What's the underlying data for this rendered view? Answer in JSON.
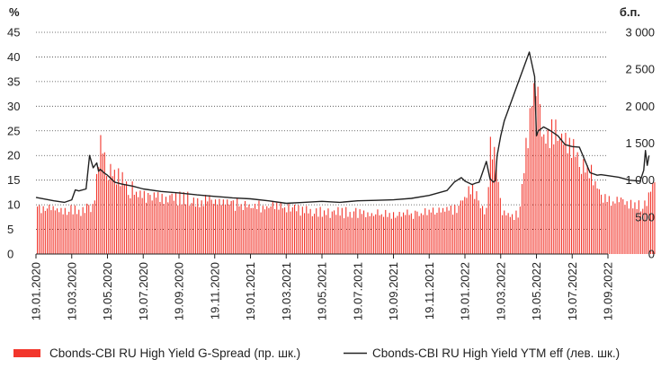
{
  "chart_data": {
    "type": "bar+line",
    "left_axis": {
      "unit": "%",
      "ticks": [
        "45",
        "40",
        "35",
        "30",
        "25",
        "20",
        "15",
        "10",
        "5",
        "0"
      ],
      "range": [
        0,
        45
      ]
    },
    "right_axis": {
      "unit": "б.п.",
      "ticks": [
        "3 000",
        "2 500",
        "2 000",
        "1 500",
        "1 000",
        "500",
        "0"
      ],
      "range": [
        0,
        3000
      ]
    },
    "x_ticks": [
      "19.01.2020",
      "19.03.2020",
      "19.05.2020",
      "19.07.2020",
      "19.09.2020",
      "19.11.2020",
      "19.01.2021",
      "19.03.2021",
      "19.05.2021",
      "19.07.2021",
      "19.09.2021",
      "19.11.2021",
      "19.01.2022",
      "19.03.2022",
      "19.05.2022",
      "19.07.2022",
      "19.09.2022"
    ],
    "grid": "horizontal-dotted",
    "series": [
      {
        "name": "Cbonds-CBI RU High Yield G-Spread (пр. шк.)",
        "type": "bar",
        "axis": "right",
        "color": "#f2362c",
        "x": [
          0.0,
          0.5,
          1.0,
          1.4,
          1.6,
          1.8,
          2.0,
          2.3,
          2.6,
          3.0,
          3.5,
          4.0,
          5.0,
          6.0,
          7.0,
          8.0,
          9.0,
          10.0,
          11.0,
          11.7,
          12.2,
          12.4,
          12.5,
          12.6,
          12.7,
          12.9,
          13.0,
          13.2,
          13.5,
          13.9,
          14.0,
          14.2,
          14.5,
          14.8,
          15.0,
          15.2,
          15.5,
          15.8,
          16.0,
          16.3,
          16.5,
          16.9,
          17.0,
          17.3
        ],
        "values": [
          650,
          620,
          590,
          600,
          660,
          1460,
          1080,
          1040,
          880,
          800,
          780,
          760,
          700,
          660,
          620,
          560,
          560,
          520,
          560,
          600,
          900,
          680,
          600,
          560,
          1500,
          1140,
          560,
          520,
          520,
          2320,
          2090,
          1560,
          1700,
          1480,
          1460,
          1200,
          1160,
          740,
          700,
          720,
          680,
          640,
          660,
          1000
        ]
      },
      {
        "name": "Cbonds-CBI RU High Yield YTM eff (лев. шк.)",
        "type": "line",
        "axis": "left",
        "color": "#222222",
        "x": [
          0.0,
          0.5,
          0.8,
          1.0,
          1.1,
          1.2,
          1.4,
          1.5,
          1.6,
          1.7,
          1.75,
          1.8,
          1.9,
          2.0,
          2.2,
          2.4,
          2.7,
          3.0,
          3.5,
          4.0,
          4.5,
          5.0,
          5.5,
          6.0,
          6.5,
          7.0,
          7.5,
          8.0,
          8.5,
          9.0,
          9.5,
          10.0,
          10.5,
          11.0,
          11.5,
          11.7,
          11.9,
          12.0,
          12.2,
          12.3,
          12.4,
          12.6,
          12.7,
          12.8,
          12.85,
          12.9,
          13.0,
          13.1,
          13.5,
          13.8,
          13.95,
          14.0,
          14.05,
          14.2,
          14.4,
          14.6,
          14.8,
          15.0,
          15.2,
          15.5,
          15.7,
          15.8,
          16.0,
          16.3,
          16.6,
          16.9,
          17.0,
          17.05,
          17.1,
          17.15
        ],
        "values": [
          11.5,
          10.8,
          10.5,
          11.0,
          13.0,
          12.8,
          13.2,
          20.0,
          17.5,
          18.5,
          16.8,
          17.2,
          16.5,
          16.0,
          14.6,
          14.2,
          13.8,
          13.2,
          12.7,
          12.4,
          12.0,
          11.7,
          11.4,
          11.2,
          10.8,
          10.3,
          10.5,
          10.7,
          10.5,
          10.8,
          10.9,
          11.0,
          11.3,
          11.9,
          12.9,
          14.6,
          15.5,
          14.8,
          14.1,
          14.4,
          14.6,
          18.8,
          15.3,
          14.6,
          14.9,
          20.0,
          24.0,
          27.0,
          35.0,
          41.0,
          36.0,
          24.0,
          25.0,
          25.8,
          25.0,
          24.0,
          22.2,
          21.8,
          21.7,
          16.5,
          16.0,
          16.1,
          15.9,
          15.6,
          15.0,
          14.8,
          17.0,
          21.0,
          18.0,
          20.0
        ]
      }
    ],
    "legend_position": "bottom"
  }
}
